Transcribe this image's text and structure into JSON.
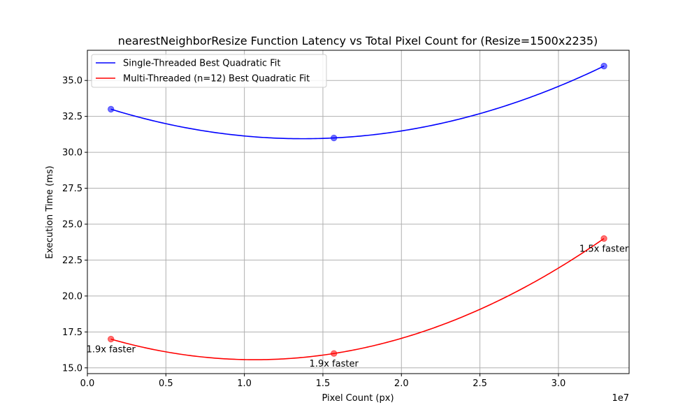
{
  "chart_data": {
    "type": "scatter",
    "title": "nearestNeighborResize Function Latency vs Total Pixel Count for (Resize=1500x2235)",
    "xlabel": "Pixel Count (px)",
    "ylabel": "Execution Time (ms)",
    "x_offset_text": "1e7",
    "xlim": [
      0,
      34500000
    ],
    "ylim": [
      14.6,
      37.1
    ],
    "x_ticks": [
      0,
      5000000,
      10000000,
      15000000,
      20000000,
      25000000,
      30000000
    ],
    "x_tick_labels": [
      "0.0",
      "0.5",
      "1.0",
      "1.5",
      "2.0",
      "2.5",
      "3.0"
    ],
    "y_ticks": [
      15.0,
      17.5,
      20.0,
      22.5,
      25.0,
      27.5,
      30.0,
      32.5,
      35.0
    ],
    "y_tick_labels": [
      "15.0",
      "17.5",
      "20.0",
      "22.5",
      "25.0",
      "27.5",
      "30.0",
      "32.5",
      "35.0"
    ],
    "grid": true,
    "legend_position": "upper-left",
    "series": [
      {
        "name": "Single-Threaded Best Quadratic Fit",
        "color": "#0000ff",
        "points": [
          [
            1500000,
            33.0
          ],
          [
            15700000,
            31.0
          ],
          [
            32900000,
            36.0
          ]
        ]
      },
      {
        "name": "Multi-Threaded (n=12) Best Quadratic Fit",
        "color": "#ff0000",
        "points": [
          [
            1500000,
            17.0
          ],
          [
            15700000,
            16.0
          ],
          [
            32900000,
            24.0
          ]
        ]
      }
    ],
    "annotations": [
      {
        "text": "1.9x faster",
        "x": 1500000,
        "y": 17.0
      },
      {
        "text": "1.9x faster",
        "x": 15700000,
        "y": 16.0
      },
      {
        "text": "1.5x faster",
        "x": 32900000,
        "y": 24.0
      }
    ]
  }
}
